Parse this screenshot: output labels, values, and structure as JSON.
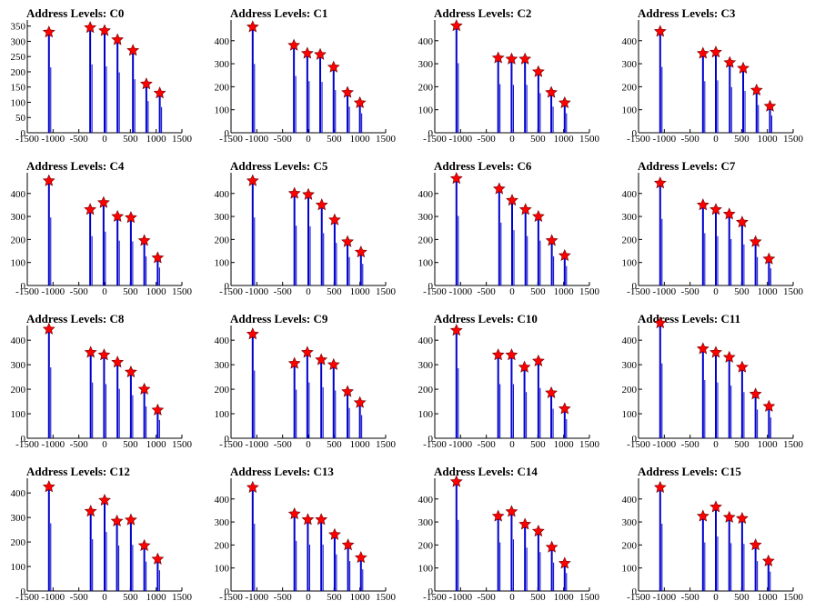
{
  "chart_data": [
    {
      "title": "Address Levels: C0",
      "type": "bar",
      "xlim": [
        -1500,
        1500
      ],
      "ylim": [
        0,
        370
      ],
      "xticks": [
        "-1500",
        "-1000",
        "-500",
        "0",
        "500",
        "1000",
        "1500"
      ],
      "yticks": [
        "0",
        "50",
        "100",
        "150",
        "200",
        "250",
        "300",
        "350"
      ],
      "x": [
        -1080,
        -280,
        0,
        250,
        550,
        810,
        1070
      ],
      "y": [
        330,
        345,
        335,
        305,
        270,
        160,
        130
      ]
    },
    {
      "title": "Address Levels: C1",
      "type": "bar",
      "xlim": [
        -1500,
        1500
      ],
      "ylim": [
        0,
        490
      ],
      "xticks": [
        "-1500",
        "-1000",
        "-500",
        "0",
        "500",
        "1000",
        "1500"
      ],
      "yticks": [
        "0",
        "100",
        "200",
        "300",
        "400"
      ],
      "x": [
        -1080,
        -280,
        -20,
        230,
        490,
        760,
        1000
      ],
      "y": [
        460,
        380,
        345,
        340,
        285,
        175,
        130
      ]
    },
    {
      "title": "Address Levels: C2",
      "type": "bar",
      "xlim": [
        -1500,
        1500
      ],
      "ylim": [
        0,
        490
      ],
      "xticks": [
        "-1500",
        "-1000",
        "-500",
        "0",
        "500",
        "1000",
        "1500"
      ],
      "yticks": [
        "0",
        "100",
        "200",
        "300",
        "400"
      ],
      "x": [
        -1080,
        -270,
        -10,
        250,
        510,
        760,
        1020
      ],
      "y": [
        465,
        325,
        320,
        320,
        265,
        175,
        130
      ]
    },
    {
      "title": "Address Levels: C3",
      "type": "bar",
      "xlim": [
        -1500,
        1500
      ],
      "ylim": [
        0,
        490
      ],
      "xticks": [
        "-1500",
        "-1000",
        "-500",
        "0",
        "500",
        "1000",
        "1500"
      ],
      "yticks": [
        "0",
        "100",
        "200",
        "300",
        "400"
      ],
      "x": [
        -1080,
        -250,
        0,
        270,
        530,
        790,
        1050
      ],
      "y": [
        440,
        345,
        350,
        305,
        280,
        185,
        115
      ]
    },
    {
      "title": "Address Levels: C4",
      "type": "bar",
      "xlim": [
        -1500,
        1500
      ],
      "ylim": [
        0,
        490
      ],
      "xticks": [
        "-1500",
        "-1000",
        "-500",
        "0",
        "500",
        "1000",
        "1500"
      ],
      "yticks": [
        "0",
        "100",
        "200",
        "300",
        "400"
      ],
      "x": [
        -1080,
        -280,
        -20,
        250,
        510,
        770,
        1030
      ],
      "y": [
        455,
        330,
        360,
        300,
        295,
        195,
        120
      ]
    },
    {
      "title": "Address Levels: C5",
      "type": "bar",
      "xlim": [
        -1500,
        1500
      ],
      "ylim": [
        0,
        490
      ],
      "xticks": [
        "-1500",
        "-1000",
        "-500",
        "0",
        "500",
        "1000",
        "1500"
      ],
      "yticks": [
        "0",
        "100",
        "200",
        "300",
        "400"
      ],
      "x": [
        -1080,
        -270,
        0,
        260,
        510,
        760,
        1020
      ],
      "y": [
        455,
        400,
        395,
        350,
        285,
        190,
        145
      ]
    },
    {
      "title": "Address Levels: C6",
      "type": "bar",
      "xlim": [
        -1500,
        1500
      ],
      "ylim": [
        0,
        490
      ],
      "xticks": [
        "-1500",
        "-1000",
        "-500",
        "0",
        "500",
        "1000",
        "1500"
      ],
      "yticks": [
        "0",
        "100",
        "200",
        "300",
        "400"
      ],
      "x": [
        -1080,
        -250,
        0,
        260,
        510,
        770,
        1020
      ],
      "y": [
        465,
        420,
        370,
        330,
        300,
        195,
        130
      ]
    },
    {
      "title": "Address Levels: C7",
      "type": "bar",
      "xlim": [
        -1500,
        1500
      ],
      "ylim": [
        0,
        490
      ],
      "xticks": [
        "-1500",
        "-1000",
        "-500",
        "0",
        "500",
        "1000",
        "1500"
      ],
      "yticks": [
        "0",
        "100",
        "200",
        "300",
        "400"
      ],
      "x": [
        -1080,
        -250,
        0,
        260,
        510,
        770,
        1030
      ],
      "y": [
        445,
        350,
        330,
        310,
        275,
        190,
        115
      ]
    },
    {
      "title": "Address Levels: C8",
      "type": "bar",
      "xlim": [
        -1500,
        1500
      ],
      "ylim": [
        0,
        460
      ],
      "xticks": [
        "-1500",
        "-1000",
        "-500",
        "0",
        "500",
        "1000",
        "1500"
      ],
      "yticks": [
        "0",
        "100",
        "200",
        "300",
        "400"
      ],
      "x": [
        -1080,
        -270,
        -10,
        250,
        510,
        770,
        1030
      ],
      "y": [
        445,
        350,
        340,
        310,
        270,
        200,
        115
      ]
    },
    {
      "title": "Address Levels: C9",
      "type": "bar",
      "xlim": [
        -1500,
        1500
      ],
      "ylim": [
        0,
        460
      ],
      "xticks": [
        "-1500",
        "-1000",
        "-500",
        "0",
        "500",
        "1000",
        "1500"
      ],
      "yticks": [
        "0",
        "100",
        "200",
        "300",
        "400"
      ],
      "x": [
        -1080,
        -270,
        -20,
        250,
        490,
        760,
        1000
      ],
      "y": [
        425,
        305,
        350,
        320,
        300,
        190,
        145
      ]
    },
    {
      "title": "Address Levels: C10",
      "type": "bar",
      "xlim": [
        -1500,
        1500
      ],
      "ylim": [
        0,
        460
      ],
      "xticks": [
        "-1500",
        "-1000",
        "-500",
        "0",
        "500",
        "1000",
        "1500"
      ],
      "yticks": [
        "0",
        "100",
        "200",
        "300",
        "400"
      ],
      "x": [
        -1080,
        -270,
        -10,
        240,
        510,
        760,
        1020
      ],
      "y": [
        440,
        340,
        340,
        290,
        315,
        185,
        120
      ]
    },
    {
      "title": "Address Levels: C11",
      "type": "bar",
      "xlim": [
        -1500,
        1500
      ],
      "ylim": [
        0,
        460
      ],
      "xticks": [
        "-1500",
        "-1000",
        "-500",
        "0",
        "500",
        "1000",
        "1500"
      ],
      "yticks": [
        "0",
        "100",
        "200",
        "300",
        "400"
      ],
      "x": [
        -1080,
        -250,
        0,
        260,
        510,
        770,
        1030
      ],
      "y": [
        470,
        365,
        350,
        330,
        290,
        180,
        130
      ]
    },
    {
      "title": "Address Levels: C12",
      "type": "bar",
      "xlim": [
        -1500,
        1500
      ],
      "ylim": [
        0,
        460
      ],
      "xticks": [
        "-1500",
        "-1000",
        "-500",
        "0",
        "500",
        "1000",
        "1500"
      ],
      "yticks": [
        "0",
        "100",
        "200",
        "300",
        "400"
      ],
      "x": [
        -1080,
        -270,
        0,
        240,
        510,
        770,
        1030
      ],
      "y": [
        425,
        325,
        370,
        285,
        290,
        185,
        130
      ]
    },
    {
      "title": "Address Levels: C13",
      "type": "bar",
      "xlim": [
        -1500,
        1500
      ],
      "ylim": [
        0,
        490
      ],
      "xticks": [
        "-1500",
        "-1000",
        "-500",
        "0",
        "500",
        "1000",
        "1500"
      ],
      "yticks": [
        "0",
        "100",
        "200",
        "300",
        "400"
      ],
      "x": [
        -1080,
        -270,
        -10,
        250,
        510,
        770,
        1020
      ],
      "y": [
        450,
        335,
        310,
        310,
        245,
        200,
        145
      ]
    },
    {
      "title": "Address Levels: C14",
      "type": "bar",
      "xlim": [
        -1500,
        1500
      ],
      "ylim": [
        0,
        490
      ],
      "xticks": [
        "-1500",
        "-1000",
        "-500",
        "0",
        "500",
        "1000",
        "1500"
      ],
      "yticks": [
        "0",
        "100",
        "200",
        "300",
        "400"
      ],
      "x": [
        -1080,
        -270,
        -10,
        250,
        510,
        770,
        1020
      ],
      "y": [
        475,
        325,
        345,
        290,
        260,
        190,
        120
      ]
    },
    {
      "title": "Address Levels: C15",
      "type": "bar",
      "xlim": [
        -1500,
        1500
      ],
      "ylim": [
        0,
        490
      ],
      "xticks": [
        "-1500",
        "-1000",
        "-500",
        "0",
        "500",
        "1000",
        "1500"
      ],
      "yticks": [
        "0",
        "100",
        "200",
        "300",
        "400"
      ],
      "x": [
        -1080,
        -250,
        0,
        260,
        510,
        770,
        1020
      ],
      "y": [
        450,
        325,
        365,
        320,
        315,
        200,
        130
      ]
    }
  ],
  "colors": {
    "bar": "#0000cc",
    "marker": "#ff0000",
    "marker_outline": "#660000"
  }
}
